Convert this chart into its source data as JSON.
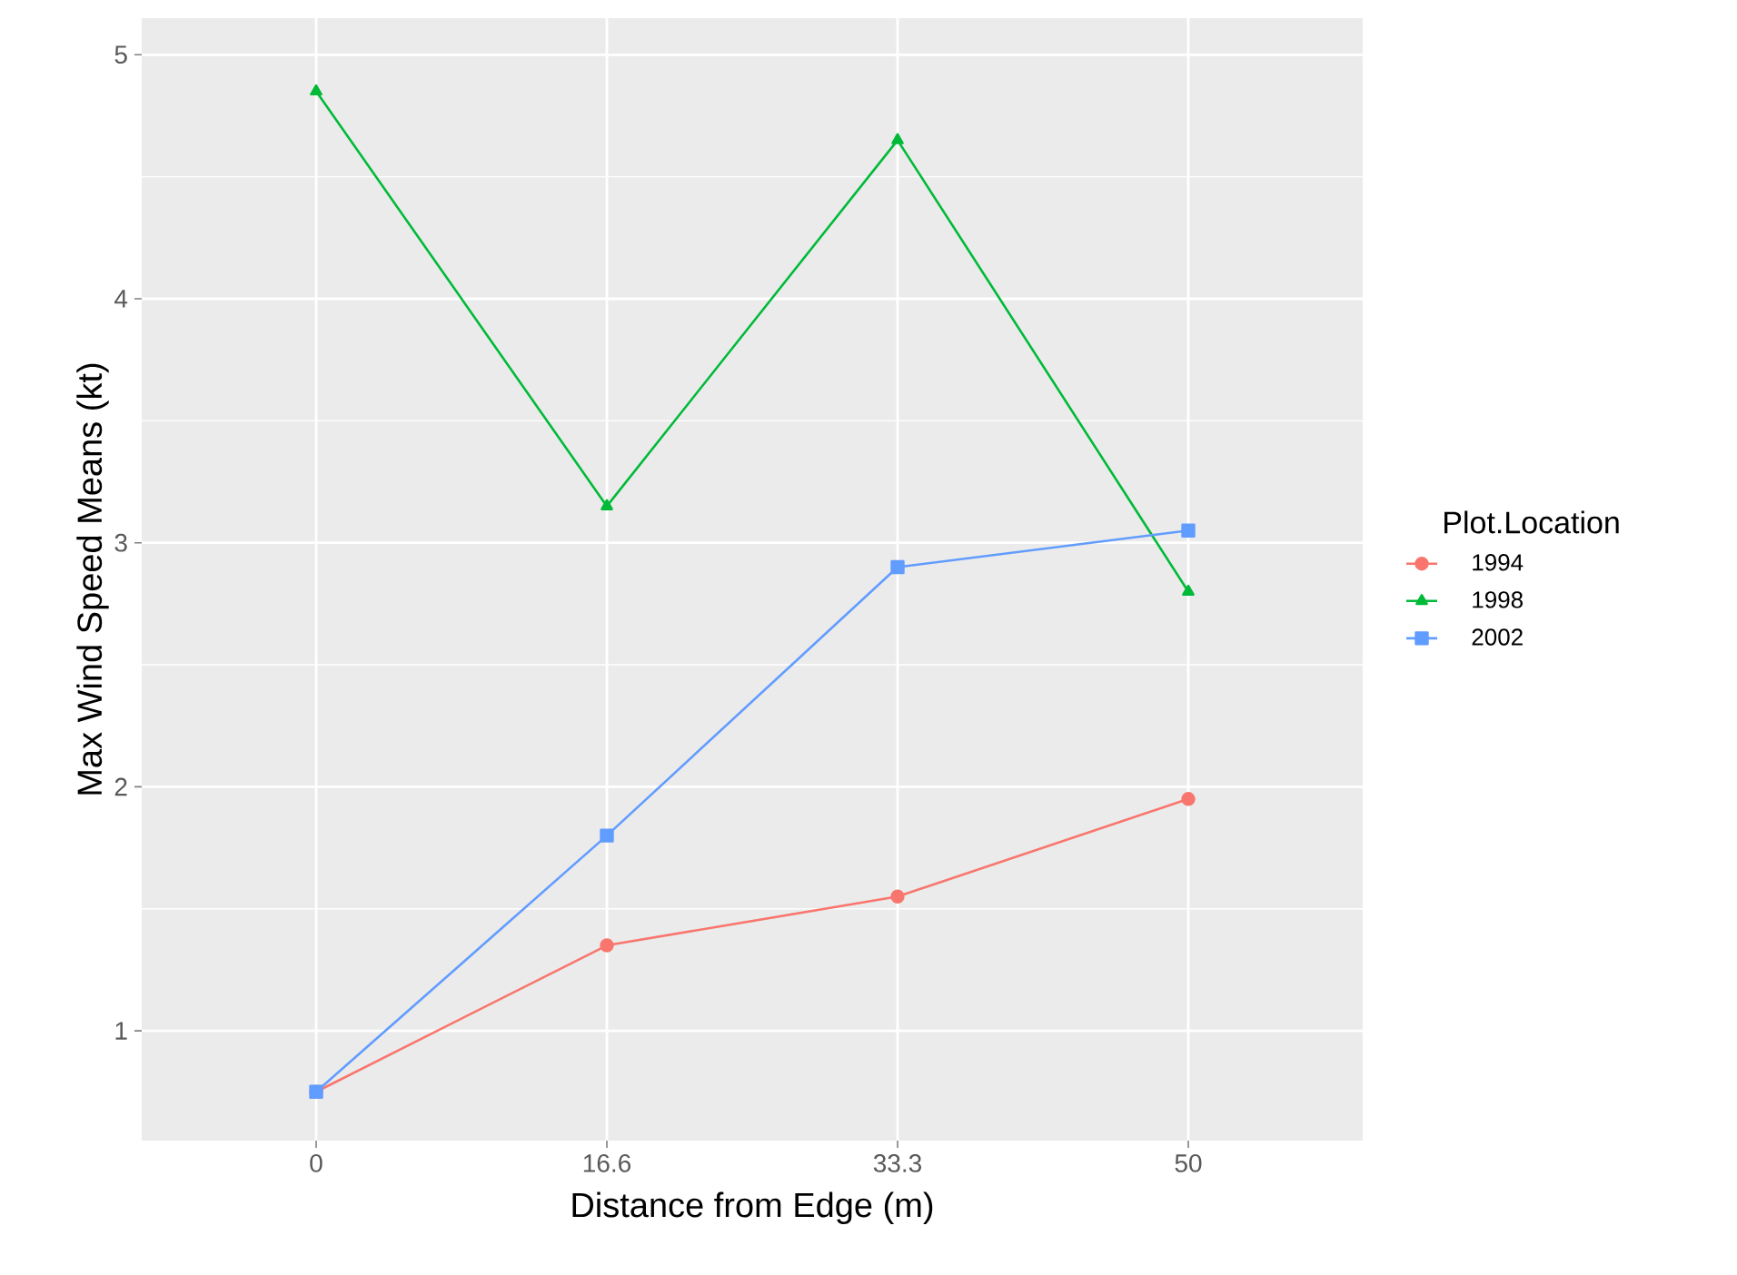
{
  "chart_data": {
    "type": "line",
    "xlabel": "Distance from Edge (m)",
    "ylabel": "Max Wind Speed Means (kt)",
    "legend_title": "Plot.Location",
    "categories": [
      "0",
      "16.6",
      "33.3",
      "50"
    ],
    "series": [
      {
        "name": "1994",
        "color": "#f8766d",
        "marker": "circle",
        "values": [
          0.75,
          1.35,
          1.55,
          1.95
        ]
      },
      {
        "name": "1998",
        "color": "#00ba38",
        "marker": "triangle",
        "values": [
          4.85,
          3.15,
          4.65,
          2.8
        ]
      },
      {
        "name": "2002",
        "color": "#619cff",
        "marker": "square",
        "values": [
          0.75,
          1.8,
          2.9,
          3.05
        ]
      }
    ],
    "ylim": [
      0.55,
      5.15
    ],
    "yticks": [
      1,
      2,
      3,
      4,
      5
    ],
    "grid": true,
    "legend": "right"
  }
}
